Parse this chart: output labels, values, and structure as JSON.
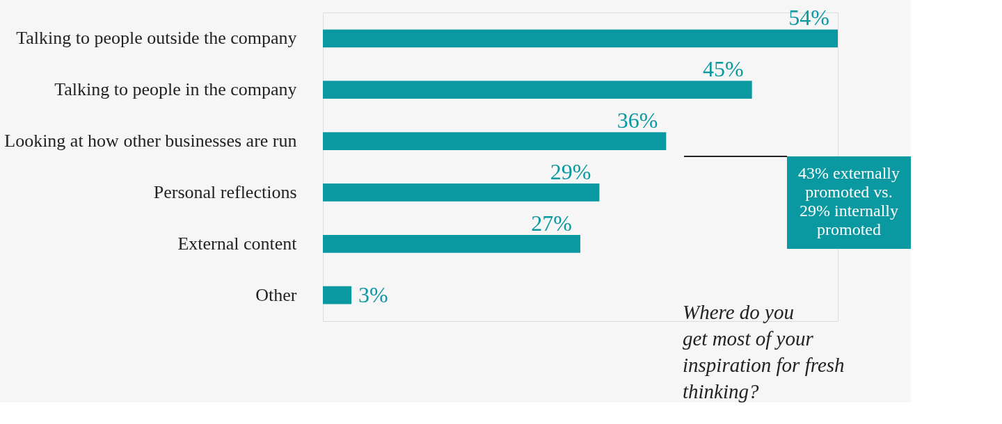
{
  "chart_data": {
    "type": "bar",
    "orientation": "horizontal",
    "title": "Where do you\nget most of your\ninspiration for fresh\nthinking?",
    "categories": [
      "Talking to people outside the company",
      "Talking to people in the company",
      "Looking at how other businesses are run",
      "Personal reflections",
      "External content",
      "Other"
    ],
    "values": [
      54,
      45,
      36,
      29,
      27,
      3
    ],
    "value_labels": [
      "54%",
      "45%",
      "36%",
      "29%",
      "27%",
      "3%"
    ],
    "color": "#0a98a1",
    "annotations": [
      "43% externally\npromoted vs.\n29% internally\npromoted"
    ],
    "grid": false
  }
}
